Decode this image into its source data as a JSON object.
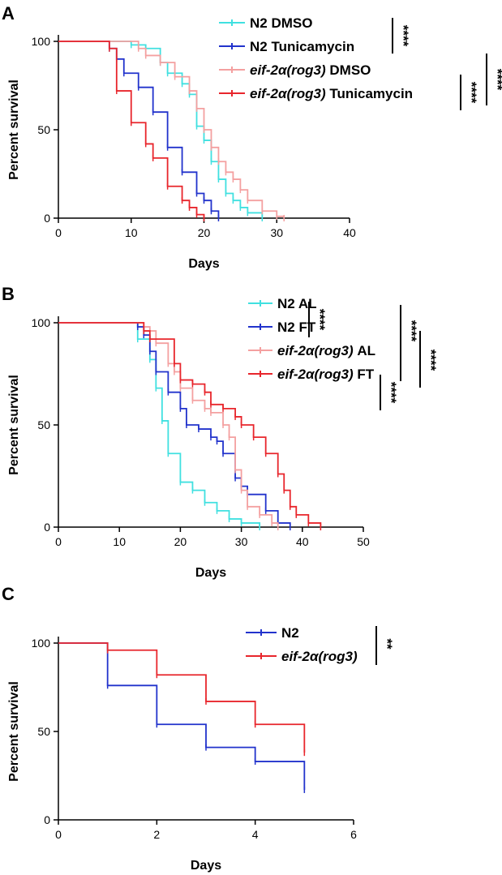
{
  "colors": {
    "cyan": "#40e0e0",
    "blue": "#2233cc",
    "pink": "#f4a0a0",
    "red": "#e8262c"
  },
  "chart_data": [
    {
      "panel": "A",
      "type": "line",
      "title": "",
      "xlabel": "Days",
      "ylabel": "Percent survival",
      "xlim": [
        0,
        40
      ],
      "ylim": [
        0,
        100
      ],
      "xticks": [
        0,
        10,
        20,
        30,
        40
      ],
      "yticks": [
        0,
        50,
        100
      ],
      "series": [
        {
          "name": "N2 DMSO",
          "italic_part": "",
          "plain_part": "N2 DMSO",
          "color": "#40e0e0",
          "points": [
            [
              0,
              100
            ],
            [
              9,
              100
            ],
            [
              10,
              98
            ],
            [
              12,
              96
            ],
            [
              14,
              88
            ],
            [
              15,
              82
            ],
            [
              17,
              76
            ],
            [
              18,
              70
            ],
            [
              19,
              52
            ],
            [
              20,
              44
            ],
            [
              21,
              32
            ],
            [
              22,
              22
            ],
            [
              23,
              14
            ],
            [
              24,
              10
            ],
            [
              25,
              6
            ],
            [
              26,
              3
            ],
            [
              28,
              0
            ]
          ]
        },
        {
          "name": "N2 Tunicamycin",
          "italic_part": "",
          "plain_part": "N2 Tunicamycin",
          "color": "#2233cc",
          "points": [
            [
              0,
              100
            ],
            [
              6,
              100
            ],
            [
              7,
              96
            ],
            [
              8,
              90
            ],
            [
              9,
              82
            ],
            [
              11,
              74
            ],
            [
              13,
              60
            ],
            [
              15,
              40
            ],
            [
              17,
              26
            ],
            [
              19,
              14
            ],
            [
              20,
              10
            ],
            [
              21,
              4
            ],
            [
              22,
              0
            ]
          ]
        },
        {
          "name": "eif-2α(rog3) DMSO",
          "italic_part": "eif-2α(rog3)",
          "plain_part": " DMSO",
          "color": "#f4a0a0",
          "points": [
            [
              0,
              100
            ],
            [
              10,
              100
            ],
            [
              11,
              96
            ],
            [
              12,
              92
            ],
            [
              14,
              88
            ],
            [
              16,
              80
            ],
            [
              18,
              72
            ],
            [
              19,
              62
            ],
            [
              20,
              50
            ],
            [
              21,
              40
            ],
            [
              22,
              32
            ],
            [
              23,
              26
            ],
            [
              24,
              22
            ],
            [
              25,
              16
            ],
            [
              26,
              10
            ],
            [
              28,
              4
            ],
            [
              30,
              1
            ],
            [
              31,
              0
            ]
          ]
        },
        {
          "name": "eif-2α(rog3) Tunicamycin",
          "italic_part": "eif-2α(rog3)",
          "plain_part": " Tunicamycin",
          "color": "#e8262c",
          "points": [
            [
              0,
              100
            ],
            [
              6,
              100
            ],
            [
              7,
              96
            ],
            [
              8,
              72
            ],
            [
              10,
              54
            ],
            [
              12,
              42
            ],
            [
              13,
              34
            ],
            [
              15,
              18
            ],
            [
              17,
              10
            ],
            [
              18,
              6
            ],
            [
              19,
              2
            ],
            [
              20,
              0
            ]
          ]
        }
      ],
      "significance": [
        {
          "label": "****",
          "between": "N2 DMSO vs N2 Tunicamycin"
        },
        {
          "label": "****",
          "between": "eif-2α(rog3) DMSO vs eif-2α(rog3) Tunicamycin"
        },
        {
          "label": "****",
          "between": "N2 Tunicamycin vs eif-2α(rog3) Tunicamycin"
        }
      ]
    },
    {
      "panel": "B",
      "type": "line",
      "title": "",
      "xlabel": "Days",
      "ylabel": "Percent survival",
      "xlim": [
        0,
        50
      ],
      "ylim": [
        0,
        100
      ],
      "xticks": [
        0,
        10,
        20,
        30,
        40,
        50
      ],
      "yticks": [
        0,
        50,
        100
      ],
      "series": [
        {
          "name": "N2 AL",
          "italic_part": "",
          "plain_part": "N2 AL",
          "color": "#40e0e0",
          "points": [
            [
              0,
              100
            ],
            [
              12,
              100
            ],
            [
              13,
              92
            ],
            [
              15,
              82
            ],
            [
              16,
              68
            ],
            [
              17,
              52
            ],
            [
              18,
              36
            ],
            [
              20,
              22
            ],
            [
              22,
              18
            ],
            [
              24,
              12
            ],
            [
              26,
              8
            ],
            [
              28,
              4
            ],
            [
              30,
              2
            ],
            [
              33,
              0
            ]
          ]
        },
        {
          "name": "N2 FT",
          "italic_part": "",
          "plain_part": "N2 FT",
          "color": "#2233cc",
          "points": [
            [
              0,
              100
            ],
            [
              12,
              100
            ],
            [
              13,
              98
            ],
            [
              14,
              94
            ],
            [
              15,
              86
            ],
            [
              16,
              76
            ],
            [
              18,
              66
            ],
            [
              20,
              58
            ],
            [
              21,
              50
            ],
            [
              23,
              48
            ],
            [
              25,
              44
            ],
            [
              26,
              42
            ],
            [
              27,
              36
            ],
            [
              29,
              24
            ],
            [
              30,
              20
            ],
            [
              31,
              16
            ],
            [
              34,
              8
            ],
            [
              36,
              2
            ],
            [
              38,
              0
            ]
          ]
        },
        {
          "name": "eif-2α(rog3) AL",
          "italic_part": "eif-2α(rog3)",
          "plain_part": " AL",
          "color": "#f4a0a0",
          "points": [
            [
              0,
              100
            ],
            [
              12,
              100
            ],
            [
              14,
              98
            ],
            [
              15,
              96
            ],
            [
              16,
              90
            ],
            [
              18,
              80
            ],
            [
              19,
              76
            ],
            [
              20,
              68
            ],
            [
              22,
              62
            ],
            [
              24,
              58
            ],
            [
              25,
              56
            ],
            [
              27,
              50
            ],
            [
              28,
              44
            ],
            [
              29,
              28
            ],
            [
              30,
              18
            ],
            [
              31,
              10
            ],
            [
              33,
              6
            ],
            [
              35,
              2
            ],
            [
              36,
              0
            ]
          ]
        },
        {
          "name": "eif-2α(rog3) FT",
          "italic_part": "eif-2α(rog3)",
          "plain_part": " FT",
          "color": "#e8262c",
          "points": [
            [
              0,
              100
            ],
            [
              12,
              100
            ],
            [
              14,
              96
            ],
            [
              15,
              92
            ],
            [
              19,
              80
            ],
            [
              20,
              72
            ],
            [
              22,
              70
            ],
            [
              24,
              66
            ],
            [
              25,
              60
            ],
            [
              27,
              58
            ],
            [
              29,
              54
            ],
            [
              30,
              50
            ],
            [
              32,
              44
            ],
            [
              34,
              36
            ],
            [
              36,
              26
            ],
            [
              37,
              18
            ],
            [
              38,
              10
            ],
            [
              39,
              6
            ],
            [
              41,
              2
            ],
            [
              43,
              0
            ]
          ]
        }
      ],
      "significance": [
        {
          "label": "****",
          "between": "N2 AL vs N2 FT"
        },
        {
          "label": "****",
          "between": "eif-2α(rog3) AL vs eif-2α(rog3) FT"
        },
        {
          "label": "****",
          "between": "N2 AL vs eif-2α(rog3) AL"
        },
        {
          "label": "****",
          "between": "N2 FT vs eif-2α(rog3) FT"
        }
      ]
    },
    {
      "panel": "C",
      "type": "line",
      "title": "",
      "xlabel": "Days",
      "ylabel": "Percent survival",
      "xlim": [
        0,
        6
      ],
      "ylim": [
        0,
        100
      ],
      "xticks": [
        0,
        2,
        4,
        6
      ],
      "yticks": [
        0,
        50,
        100
      ],
      "series": [
        {
          "name": "N2",
          "italic_part": "",
          "plain_part": "N2",
          "color": "#2233cc",
          "points": [
            [
              0,
              100
            ],
            [
              1,
              100
            ],
            [
              1,
              76
            ],
            [
              2,
              76
            ],
            [
              2,
              54
            ],
            [
              3,
              54
            ],
            [
              3,
              41
            ],
            [
              4,
              41
            ],
            [
              4,
              33
            ],
            [
              5,
              33
            ],
            [
              5,
              17
            ]
          ]
        },
        {
          "name": "eif-2α(rog3)",
          "italic_part": "eif-2α(rog3)",
          "plain_part": "",
          "color": "#e8262c",
          "points": [
            [
              0,
              100
            ],
            [
              1,
              100
            ],
            [
              1,
              96
            ],
            [
              2,
              96
            ],
            [
              2,
              82
            ],
            [
              3,
              82
            ],
            [
              3,
              67
            ],
            [
              4,
              67
            ],
            [
              4,
              54
            ],
            [
              5,
              54
            ],
            [
              5,
              38
            ]
          ]
        }
      ],
      "significance": [
        {
          "label": "**",
          "between": "N2 vs eif-2α(rog3)"
        }
      ]
    }
  ]
}
